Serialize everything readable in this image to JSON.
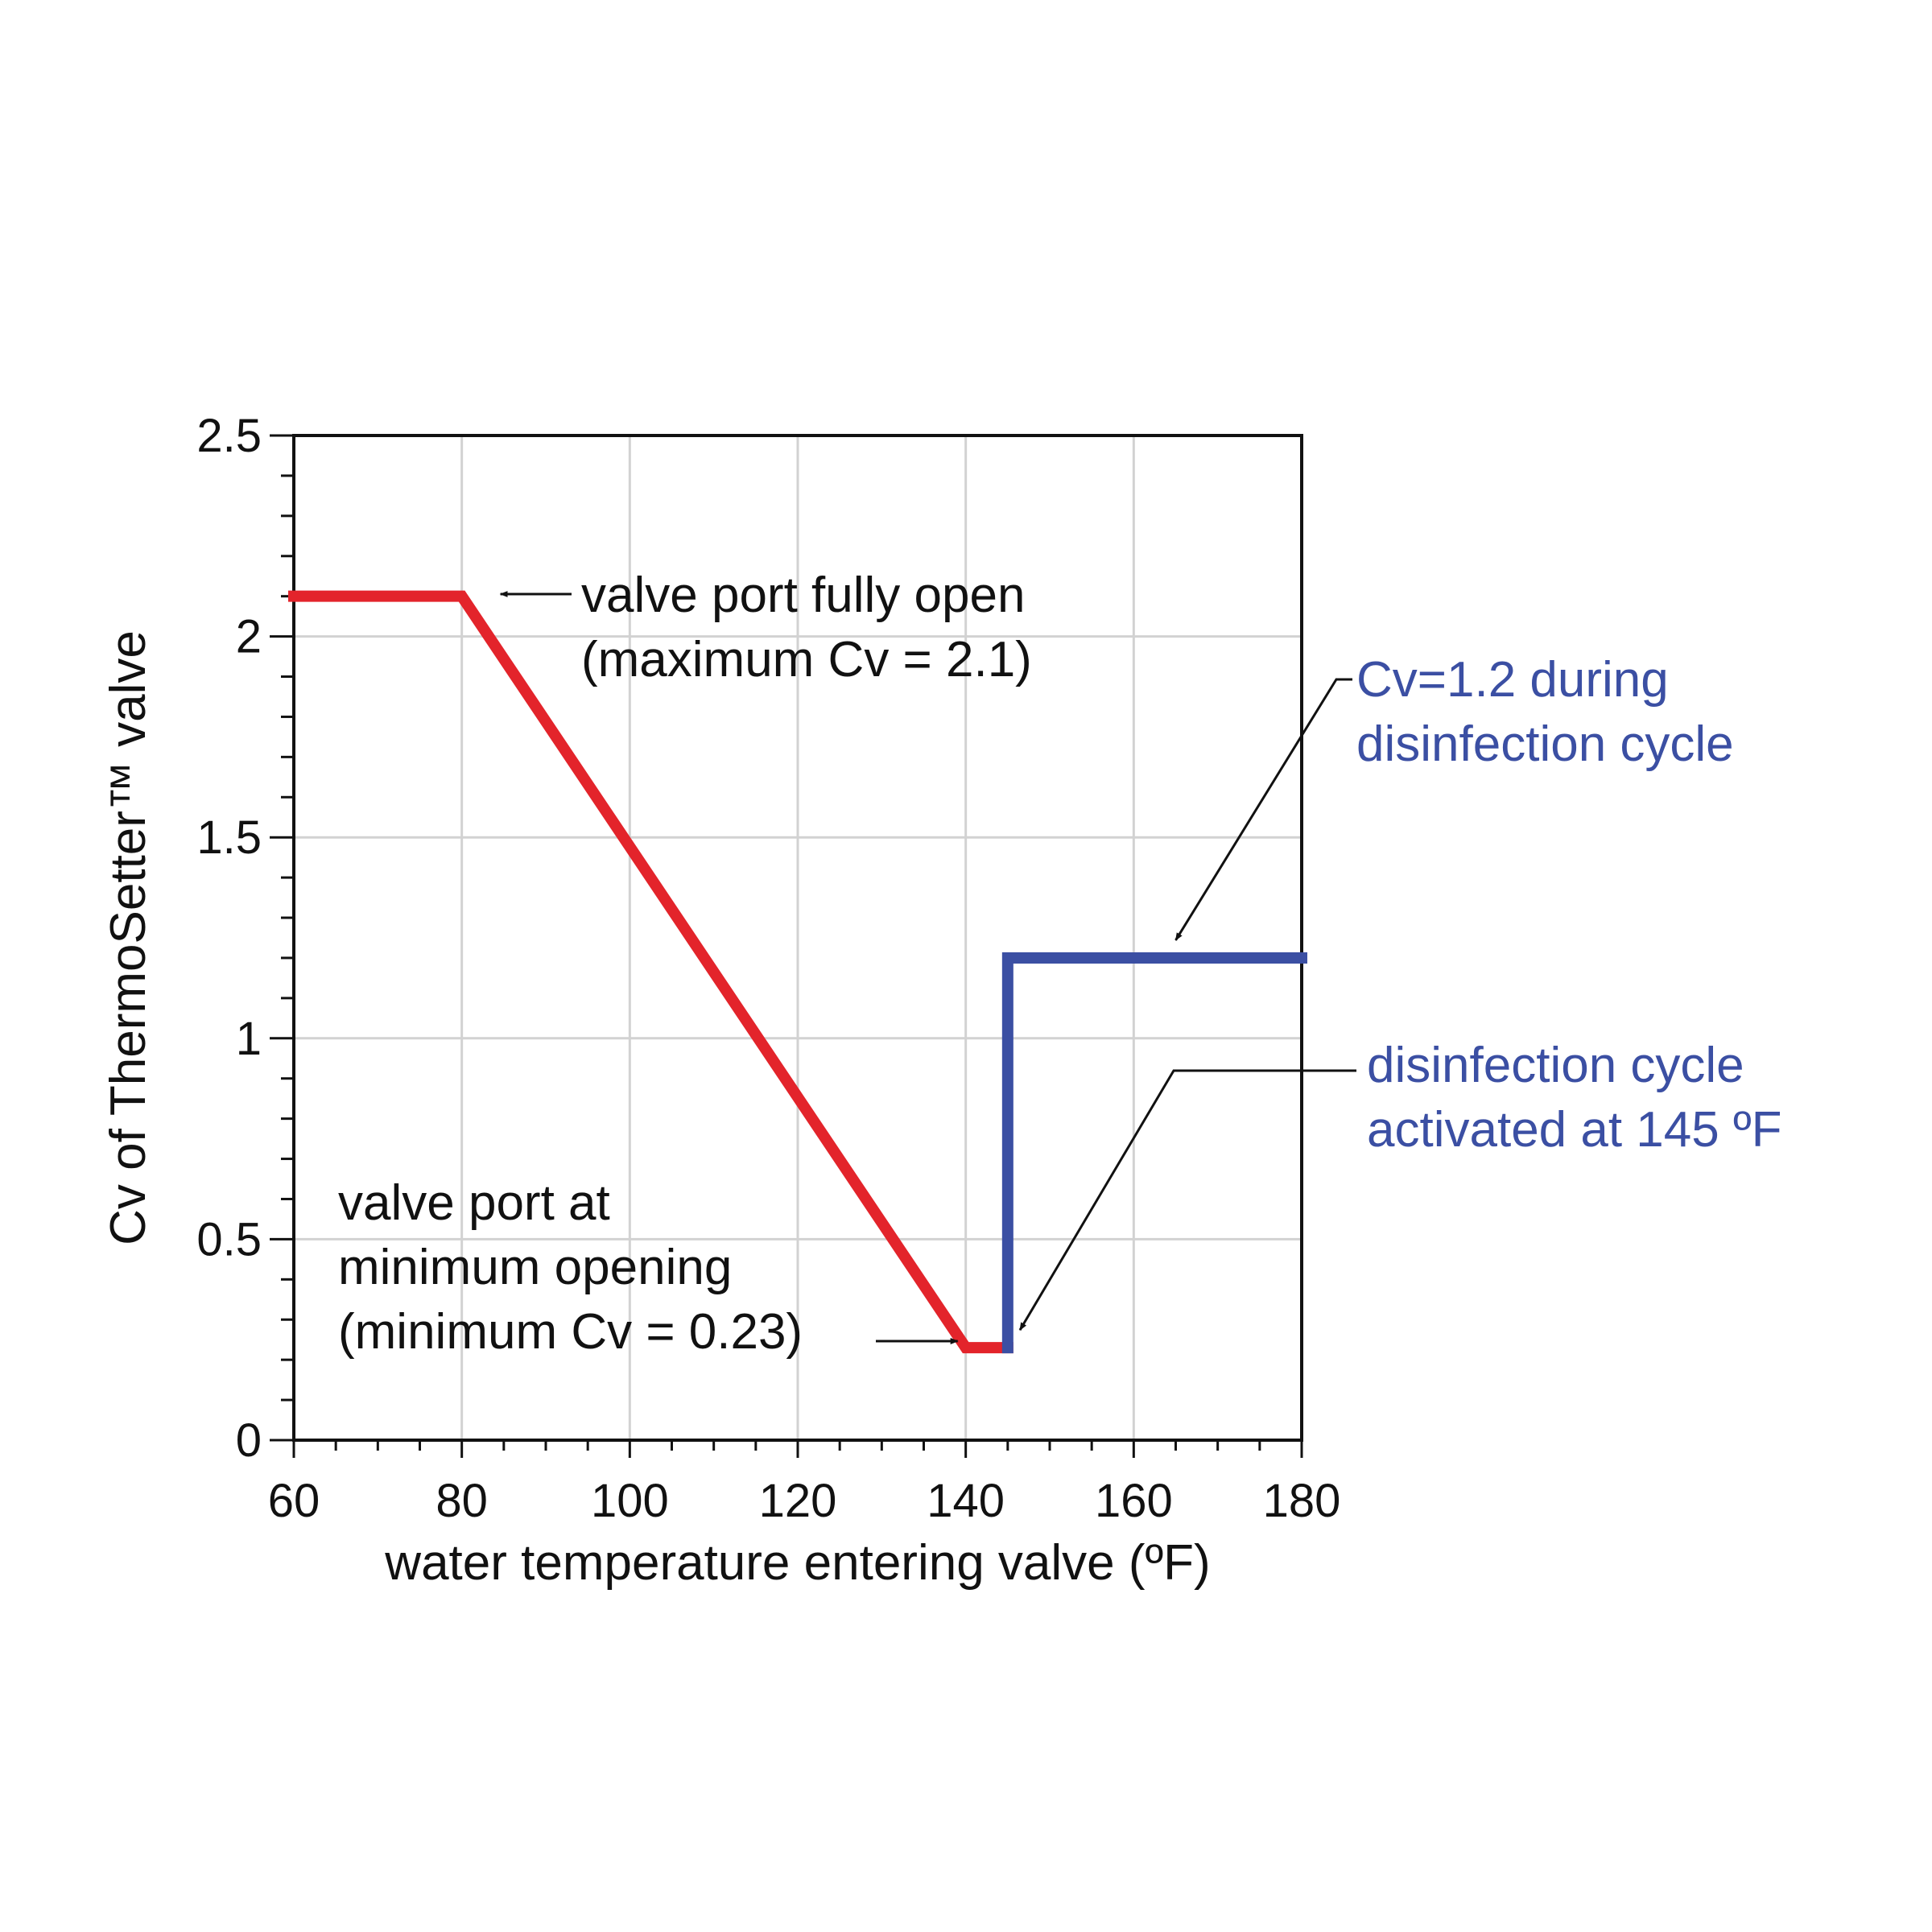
{
  "chart_data": {
    "type": "line",
    "title": "",
    "xlabel": "water temperature entering valve (ºF)",
    "ylabel": "Cv of ThermoSetter™ valve",
    "xlim": [
      60,
      180
    ],
    "ylim": [
      0,
      2.5
    ],
    "x_ticks": [
      60,
      80,
      100,
      120,
      140,
      160,
      180
    ],
    "x_tick_labels": [
      "60",
      "80",
      "100",
      "120",
      "140",
      "160",
      "180"
    ],
    "y_ticks": [
      0,
      0.5,
      1,
      1.5,
      2,
      2.5
    ],
    "y_tick_labels": [
      "0",
      "0.5",
      "1",
      "1.5",
      "2",
      "2.5"
    ],
    "grid": true,
    "legend": "none",
    "series": [
      {
        "color": "#e3242b",
        "points": [
          {
            "x": 60,
            "y": 2.1
          },
          {
            "x": 80,
            "y": 2.1
          },
          {
            "x": 140,
            "y": 0.23
          },
          {
            "x": 145,
            "y": 0.23
          }
        ]
      },
      {
        "color": "#3b4fa3",
        "points": [
          {
            "x": 145,
            "y": 0.23
          },
          {
            "x": 145,
            "y": 1.2
          },
          {
            "x": 180,
            "y": 1.2
          }
        ]
      }
    ],
    "annotations": [
      {
        "lines": [
          "valve port fully open",
          "(maximum Cv = 2.1)"
        ],
        "color": "#111111",
        "points_to": {
          "x": 80,
          "y": 2.1
        }
      },
      {
        "lines": [
          "valve port at",
          "minimum opening",
          "(minimum Cv = 0.23)"
        ],
        "color": "#111111",
        "points_to": {
          "x": 140,
          "y": 0.23
        }
      },
      {
        "lines": [
          "Cv=1.2  during",
          "disinfection cycle"
        ],
        "color": "#3b4fa3",
        "points_to": {
          "x": 165,
          "y": 1.2
        }
      },
      {
        "lines": [
          "disinfection cycle",
          "activated at 145 ºF"
        ],
        "color": "#3b4fa3",
        "points_to": {
          "x": 145.5,
          "y": 0.25
        }
      }
    ]
  }
}
